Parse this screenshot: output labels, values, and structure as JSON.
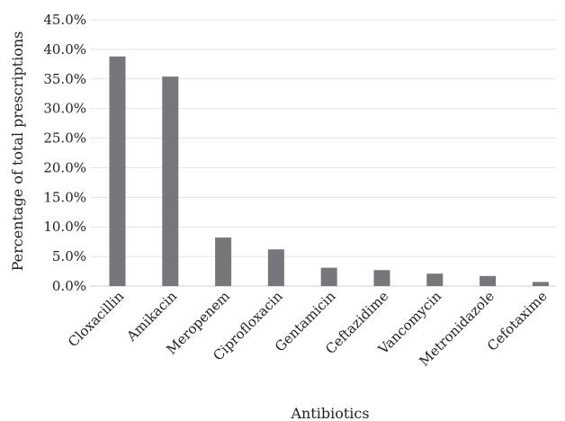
{
  "chart_data": {
    "type": "bar",
    "title": "",
    "xlabel": "Antibiotics",
    "ylabel": "Percentage of total prescriptions",
    "categories": [
      "Cloxacillin",
      "Amikacin",
      "Meropenem",
      "Ciprofloxacin",
      "Gentamicin",
      "Ceftazidime",
      "Vancomycin",
      "Metronidazole",
      "Cefotaxime"
    ],
    "values": [
      38.8,
      35.4,
      8.2,
      6.2,
      3.1,
      2.7,
      2.1,
      1.7,
      0.7
    ],
    "ylim": [
      0,
      45
    ],
    "yticks": [
      0,
      5,
      10,
      15,
      20,
      25,
      30,
      35,
      40,
      45
    ],
    "ytick_labels": [
      "0.0%",
      "5.0%",
      "10.0%",
      "15.0%",
      "20.0%",
      "25.0%",
      "30.0%",
      "35.0%",
      "40.0%",
      "45.0%"
    ],
    "grid": true,
    "legend": "none",
    "bar_color": "#77777b"
  }
}
